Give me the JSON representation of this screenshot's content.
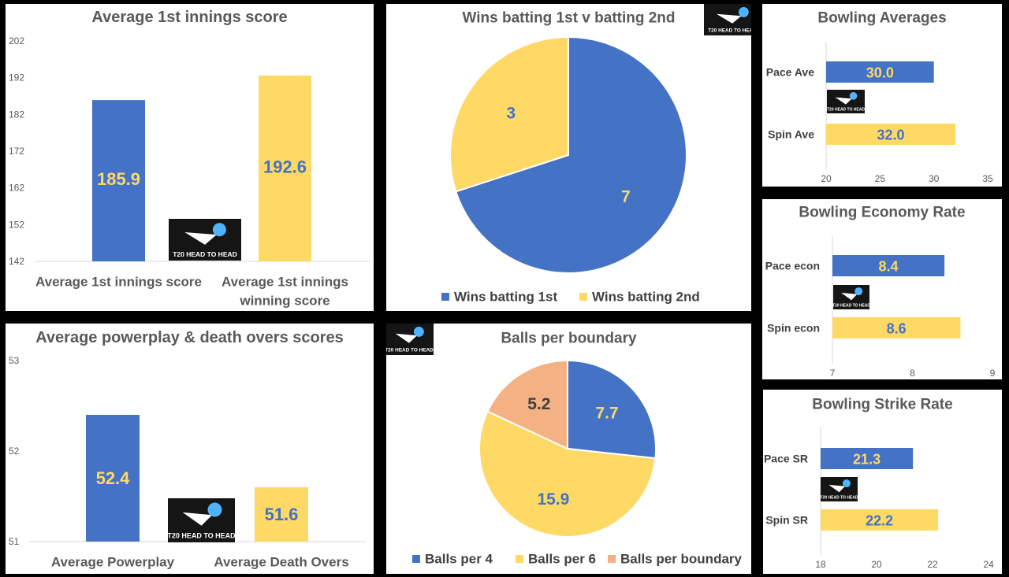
{
  "colors": {
    "blue": "#4472C4",
    "yellow": "#FFD966",
    "orange": "#F4B183",
    "label_on_blue": "#FFD966",
    "label_on_yellow": "#4472C4",
    "label_on_orange": "#404040"
  },
  "logo_text": "T20 HEAD TO HEAD",
  "logo_icon": "ball-streak-icon",
  "chart_data": [
    {
      "id": "innings",
      "type": "bar",
      "title": "Average 1st innings score",
      "categories": [
        [
          "Average 1st innings score"
        ],
        [
          "Average 1st innings",
          "winning score"
        ]
      ],
      "values": [
        185.9,
        192.6
      ],
      "value_labels": [
        "185.9",
        "192.6"
      ],
      "ylim": [
        142,
        202
      ],
      "yticks": [
        "142",
        "152",
        "162",
        "172",
        "182",
        "192",
        "202"
      ],
      "grid": false,
      "legend": "none"
    },
    {
      "id": "wins",
      "type": "pie",
      "title": "Wins batting 1st v batting 2nd",
      "labels": [
        "Wins batting 1st",
        "Wins batting 2nd"
      ],
      "values": [
        7,
        3
      ],
      "value_labels": [
        "7",
        "3"
      ],
      "legend": "bottom"
    },
    {
      "id": "bowl_ave",
      "type": "bar",
      "orientation": "horizontal",
      "title": "Bowling Averages",
      "categories": [
        "Pace Ave",
        "Spin Ave"
      ],
      "values": [
        30.0,
        32.0
      ],
      "value_labels": [
        "30.0",
        "32.0"
      ],
      "xlim": [
        20,
        35
      ],
      "xticks": [
        "20",
        "25",
        "30",
        "35"
      ],
      "legend": "none"
    },
    {
      "id": "bowl_econ",
      "type": "bar",
      "orientation": "horizontal",
      "title": "Bowling Economy Rate",
      "categories": [
        "Pace econ",
        "Spin econ"
      ],
      "values": [
        8.4,
        8.6
      ],
      "value_labels": [
        "8.4",
        "8.6"
      ],
      "xlim": [
        7,
        9
      ],
      "xticks": [
        "7",
        "8",
        "9"
      ],
      "legend": "none"
    },
    {
      "id": "powerplay",
      "type": "bar",
      "title": "Average powerplay & death overs scores",
      "categories": [
        [
          "Average Powerplay"
        ],
        [
          "Average Death Overs"
        ]
      ],
      "values": [
        52.4,
        51.6
      ],
      "value_labels": [
        "52.4",
        "51.6"
      ],
      "ylim": [
        51,
        53
      ],
      "yticks": [
        "51",
        "52",
        "53"
      ],
      "grid": false,
      "legend": "none"
    },
    {
      "id": "boundary",
      "type": "pie",
      "title": "Balls per boundary",
      "labels": [
        "Balls per 4",
        "Balls per 6",
        "Balls per boundary"
      ],
      "values": [
        7.7,
        15.9,
        5.2
      ],
      "value_labels": [
        "7.7",
        "15.9",
        "5.2"
      ],
      "legend": "bottom"
    },
    {
      "id": "bowl_sr",
      "type": "bar",
      "orientation": "horizontal",
      "title": "Bowling Strike Rate",
      "categories": [
        "Pace SR",
        "Spin SR"
      ],
      "values": [
        21.3,
        22.2
      ],
      "value_labels": [
        "21.3",
        "22.2"
      ],
      "xlim": [
        18,
        24
      ],
      "xticks": [
        "18",
        "20",
        "22",
        "24"
      ],
      "legend": "none"
    }
  ]
}
